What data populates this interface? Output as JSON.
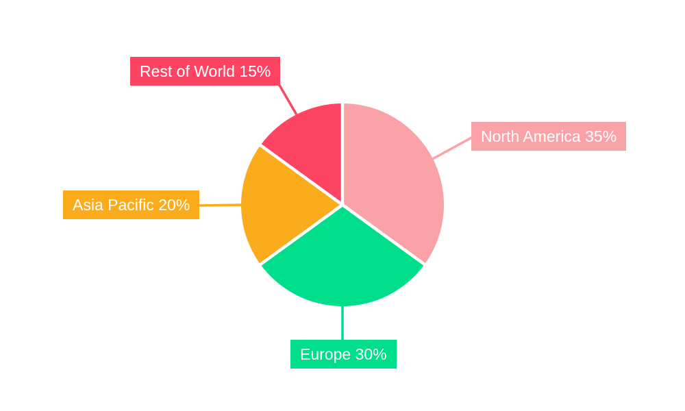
{
  "canvas": {
    "background": "#FFFFFF"
  },
  "chart_data": {
    "type": "pie",
    "title": "",
    "categories": [
      "North America",
      "Europe",
      "Asia Pacific",
      "Rest of World"
    ],
    "values": [
      35,
      30,
      20,
      15
    ],
    "unit": "%",
    "direction": "clockwise",
    "start_angle_deg": 0,
    "legend_position": "none",
    "separator_color": "#FFFFFF",
    "label_text_color": "#FFFFFF",
    "slices": [
      {
        "category": "North America",
        "value": 35,
        "label": "North America 35%",
        "color": "#F9A3A8"
      },
      {
        "category": "Europe",
        "value": 30,
        "label": "Europe 30%",
        "color": "#00DE8C"
      },
      {
        "category": "Asia Pacific",
        "value": 20,
        "label": "Asia Pacific 20%",
        "color": "#FBAC1C"
      },
      {
        "category": "Rest of World",
        "value": 15,
        "label": "Rest of World 15%",
        "color": "#FD4563"
      }
    ]
  }
}
